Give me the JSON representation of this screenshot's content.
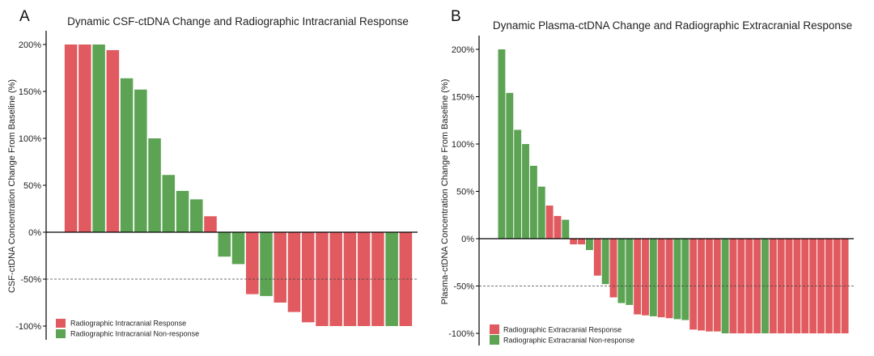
{
  "colors": {
    "response": "#e05a5f",
    "non_response": "#5ca454"
  },
  "chart_data": [
    {
      "type": "bar",
      "panel": "A",
      "title": "Dynamic CSF-ctDNA Change and Radiographic Intracranial Response",
      "xlabel": "",
      "ylabel": "CSF-ctDNA Concentration Change From Baseline (%)",
      "ylim": [
        -110,
        210
      ],
      "yticks": [
        -100,
        -50,
        0,
        50,
        100,
        150,
        200
      ],
      "ytick_labels": [
        "-100%",
        "-50%",
        "0%",
        "50%",
        "100%",
        "150%",
        "200%"
      ],
      "threshold": -50,
      "legend_position": "bottom-left",
      "series": [
        {
          "name": "Radiographic Intracranial Response",
          "key": "response"
        },
        {
          "name": "Radiographic Intracranial Non-response",
          "key": "non_response"
        }
      ],
      "values": [
        200,
        200,
        200,
        194,
        164,
        152,
        100,
        61,
        44,
        35,
        17,
        -26,
        -34,
        -66,
        -68,
        -75,
        -85,
        -96,
        -100,
        -100,
        -100,
        -100,
        -100,
        -100,
        -100
      ],
      "groups": [
        "response",
        "response",
        "non_response",
        "response",
        "non_response",
        "non_response",
        "non_response",
        "non_response",
        "non_response",
        "non_response",
        "response",
        "non_response",
        "non_response",
        "response",
        "non_response",
        "response",
        "response",
        "response",
        "response",
        "response",
        "response",
        "response",
        "response",
        "non_response",
        "response"
      ]
    },
    {
      "type": "bar",
      "panel": "B",
      "title": "Dynamic Plasma-ctDNA Change and Radiographic Extracranial Response",
      "xlabel": "",
      "ylabel": "Plasma-ctDNA Concentration Change From Baseline (%)",
      "ylim": [
        -110,
        210
      ],
      "yticks": [
        -100,
        -50,
        0,
        50,
        100,
        150,
        200
      ],
      "ytick_labels": [
        "-100%",
        "-50%",
        "0%",
        "50%",
        "100%",
        "150%",
        "200%"
      ],
      "threshold": -50,
      "legend_position": "bottom-left",
      "series": [
        {
          "name": "Radiographic Extracranial Response",
          "key": "response"
        },
        {
          "name": "Radiographic Extracranial Non-response",
          "key": "non_response"
        }
      ],
      "values": [
        200,
        154,
        115,
        100,
        77,
        55,
        35,
        24,
        20,
        -6,
        -6,
        -12,
        -39,
        -48,
        -62,
        -68,
        -70,
        -80,
        -81,
        -82,
        -83,
        -84,
        -85,
        -86,
        -96,
        -97,
        -98,
        -98,
        -100,
        -100,
        -100,
        -100,
        -100,
        -100,
        -100,
        -100,
        -100,
        -100,
        -100,
        -100,
        -100,
        -100,
        -100,
        -100
      ],
      "groups": [
        "non_response",
        "non_response",
        "non_response",
        "non_response",
        "non_response",
        "non_response",
        "response",
        "response",
        "non_response",
        "response",
        "response",
        "non_response",
        "response",
        "non_response",
        "response",
        "non_response",
        "non_response",
        "response",
        "response",
        "non_response",
        "response",
        "response",
        "non_response",
        "non_response",
        "response",
        "response",
        "response",
        "response",
        "non_response",
        "response",
        "response",
        "response",
        "response",
        "non_response",
        "response",
        "response",
        "response",
        "response",
        "response",
        "response",
        "response",
        "response",
        "response",
        "response"
      ]
    }
  ]
}
